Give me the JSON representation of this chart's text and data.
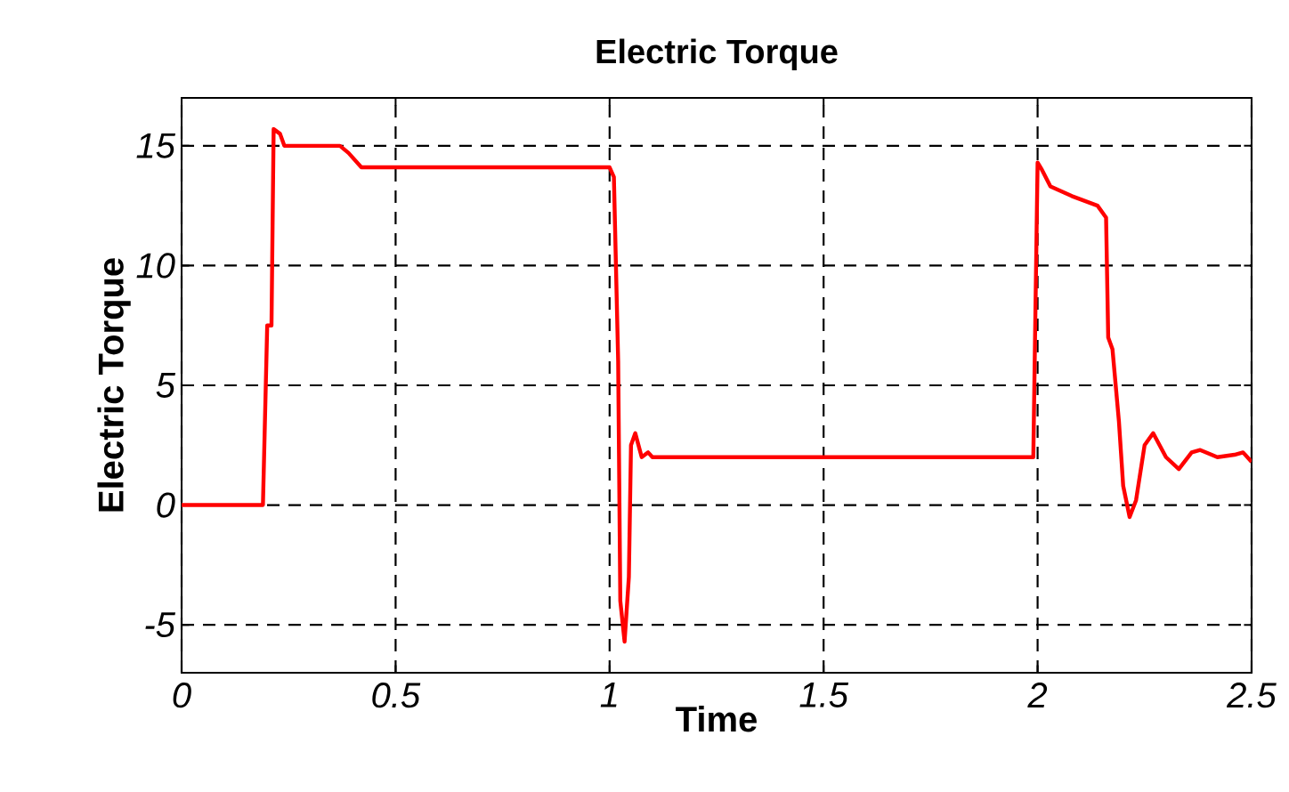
{
  "chart_data": {
    "type": "line",
    "title": "Electric Torque",
    "xlabel": "Time",
    "ylabel": "Electric Torque",
    "xlim": [
      0,
      2.5
    ],
    "ylim": [
      -7,
      17
    ],
    "xticks": [
      0,
      0.5,
      1,
      1.5,
      2,
      2.5
    ],
    "yticks": [
      -5,
      0,
      5,
      10,
      15
    ],
    "grid": true,
    "series": [
      {
        "color": "#ff0000",
        "x": [
          0,
          0.19,
          0.2,
          0.21,
          0.215,
          0.23,
          0.24,
          0.37,
          0.39,
          0.42,
          1.0,
          1.01,
          1.02,
          1.025,
          1.035,
          1.045,
          1.05,
          1.06,
          1.075,
          1.09,
          1.1,
          1.99,
          2.0,
          2.01,
          2.03,
          2.08,
          2.14,
          2.16,
          2.165,
          2.175,
          2.19,
          2.2,
          2.215,
          2.23,
          2.25,
          2.27,
          2.3,
          2.33,
          2.36,
          2.38,
          2.42,
          2.46,
          2.48,
          2.5
        ],
        "values": [
          0,
          0,
          7.5,
          7.5,
          15.7,
          15.5,
          15,
          15,
          14.7,
          14.1,
          14.1,
          13.7,
          6,
          -4,
          -5.7,
          -3,
          2.5,
          3,
          2,
          2.2,
          2,
          2,
          14.3,
          14,
          13.3,
          12.9,
          12.5,
          12,
          7,
          6.5,
          3.5,
          0.8,
          -0.5,
          0.2,
          2.5,
          3,
          2,
          1.5,
          2.2,
          2.3,
          2,
          2.1,
          2.2,
          1.8
        ]
      }
    ]
  }
}
